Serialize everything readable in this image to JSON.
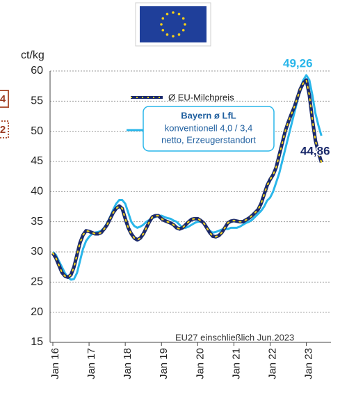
{
  "chart_data": {
    "type": "line",
    "y_label": "ct/kg",
    "categories": [
      "Jan 16",
      null,
      null,
      null,
      null,
      null,
      null,
      null,
      null,
      null,
      null,
      null,
      "Jan 17",
      null,
      null,
      null,
      null,
      null,
      null,
      null,
      null,
      null,
      null,
      null,
      "Jan 18",
      null,
      null,
      null,
      null,
      null,
      null,
      null,
      null,
      null,
      null,
      null,
      "Jan 19",
      null,
      null,
      null,
      null,
      null,
      null,
      null,
      null,
      null,
      null,
      null,
      "Jan 20",
      null,
      null,
      null,
      null,
      null,
      null,
      null,
      null,
      null,
      null,
      null,
      "Jan 21",
      null,
      null,
      null,
      null,
      null,
      null,
      null,
      null,
      null,
      null,
      null,
      "Jan 22",
      null,
      null,
      null,
      null,
      null,
      null,
      null,
      null,
      null,
      null,
      null,
      "Jan 23",
      null,
      null,
      null,
      null,
      null
    ],
    "series": [
      {
        "name": "Ø EU-Milchpreis",
        "color": "#1b2a6b",
        "dot_color": "#f2d21c",
        "values": [
          29.8,
          29,
          27.8,
          26.6,
          26,
          25.8,
          26.2,
          27.5,
          29.5,
          31.5,
          32.8,
          33.5,
          33.4,
          33.2,
          33,
          33,
          33.2,
          33.8,
          34.5,
          35.5,
          36.5,
          37.2,
          37.6,
          37.2,
          35.5,
          34,
          33,
          32.3,
          32,
          32.3,
          33,
          34,
          35,
          35.8,
          36,
          36,
          35.5,
          35.2,
          35,
          34.8,
          34.5,
          34,
          33.8,
          34,
          34.5,
          35,
          35.4,
          35.5,
          35.5,
          35.2,
          34.8,
          34,
          33.2,
          32.6,
          32.5,
          32.7,
          33.2,
          34,
          34.8,
          35.1,
          35.2,
          35.1,
          35,
          35,
          35.3,
          35.6,
          36,
          36.5,
          37,
          38,
          39.5,
          41,
          42,
          42.8,
          44,
          46,
          48,
          50,
          51.5,
          52.8,
          54,
          55.5,
          57,
          58,
          58.5,
          56,
          52,
          48.5,
          46.5,
          44.86
        ]
      },
      {
        "name": "Bayern ø LfL",
        "color": "#29b6ea",
        "values": [
          30,
          29.5,
          28.5,
          27.5,
          26.5,
          25.8,
          25.4,
          25.5,
          26.5,
          28.5,
          30.5,
          31.8,
          32.5,
          33,
          33.2,
          33.3,
          33.5,
          34,
          34.8,
          35.8,
          37,
          38,
          38.6,
          38.6,
          38,
          36.5,
          35,
          34.3,
          34,
          34.2,
          34.5,
          35,
          35.3,
          35.6,
          35.8,
          36,
          36,
          35.8,
          35.6,
          35.5,
          35.2,
          35,
          34.5,
          34,
          34,
          34.2,
          34.5,
          34.8,
          35,
          35,
          34.8,
          34.2,
          33.5,
          33.2,
          33.3,
          33.5,
          33.7,
          33.8,
          33.8,
          34,
          34,
          34,
          34.2,
          34.5,
          34.8,
          35,
          35.3,
          35.8,
          36.3,
          36.8,
          37.5,
          38.5,
          39,
          40,
          41.5,
          43,
          45,
          47,
          49,
          51,
          53,
          55,
          57,
          58.5,
          59.3,
          58.5,
          56,
          53,
          51,
          49.26
        ]
      }
    ],
    "legend_note": [
      "konventionell  4,0 / 3,4",
      "netto, Erzeugerstandort"
    ],
    "annotations": [
      "49,26",
      "44,86",
      "EU27 einschließlich Jun.2023"
    ],
    "edge_labels": [
      "4",
      "2"
    ],
    "ylim": [
      15,
      60
    ],
    "yticks": [
      15,
      20,
      25,
      30,
      35,
      40,
      45,
      50,
      55,
      60
    ],
    "grid": true
  }
}
